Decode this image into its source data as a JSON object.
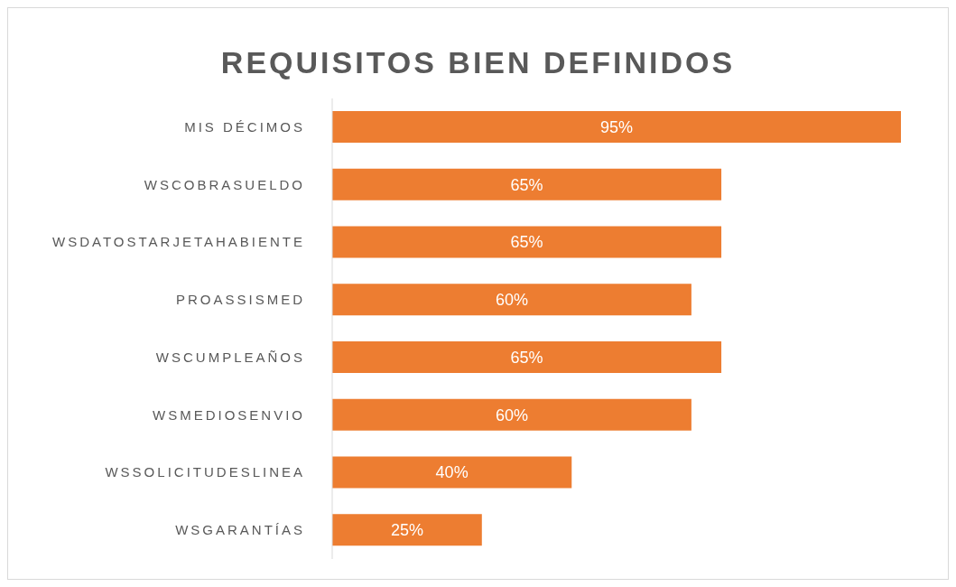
{
  "chart_data": {
    "type": "bar",
    "orientation": "horizontal",
    "title": "REQUISITOS BIEN DEFINIDOS",
    "categories": [
      "MIS DÉCIMOS",
      "WSCOBRASUELDO",
      "WSDATOSTARJETAHABIENTE",
      "PROASSISMED",
      "WSCUMPLEAÑOS",
      "WSMEDIOSENVIO",
      "WSSOLICITUDESLINEA",
      "WSGARANTÍAS"
    ],
    "values": [
      95,
      65,
      65,
      60,
      65,
      60,
      40,
      25
    ],
    "value_labels": [
      "95%",
      "65%",
      "65%",
      "60%",
      "65%",
      "60%",
      "40%",
      "25%"
    ],
    "color": "#ed7d31",
    "grid": false
  }
}
